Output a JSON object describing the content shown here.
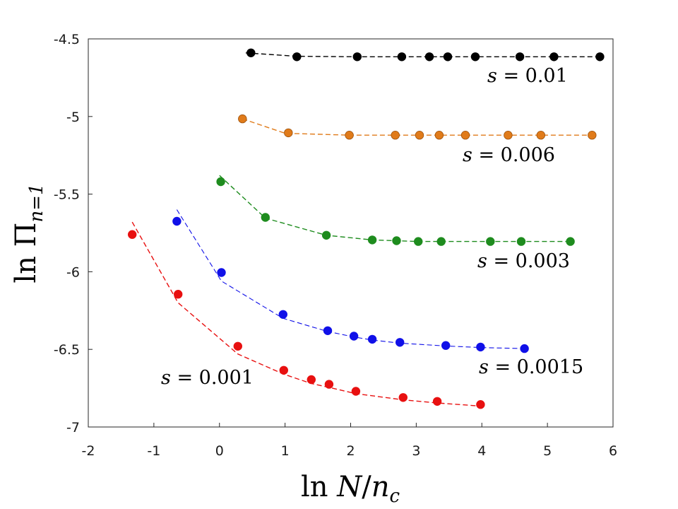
{
  "chart_data": {
    "type": "scatter",
    "title": "",
    "xlabel": "ln N/n_c",
    "ylabel": "ln Π_{n=1}",
    "xlabel_parts": {
      "prefix": "ln ",
      "var": "N",
      "slash": "/",
      "sub_var": "n",
      "sub": "c"
    },
    "ylabel_parts": {
      "prefix": "ln Π",
      "sub": "n=1"
    },
    "xlim": [
      -2,
      6
    ],
    "ylim": [
      -7,
      -4.5
    ],
    "xticks": [
      -2,
      -1,
      0,
      1,
      2,
      3,
      4,
      5,
      6
    ],
    "yticks": [
      -4.5,
      -5,
      -5.5,
      -6,
      -6.5,
      -7
    ],
    "xtick_labels": [
      "-2",
      "-1",
      "0",
      "1",
      "2",
      "3",
      "4",
      "5",
      "6"
    ],
    "ytick_labels": [
      "-4.5",
      "-5",
      "-5.5",
      "-6",
      "-6.5",
      "-7"
    ],
    "grid": false,
    "series": [
      {
        "name": "s = 0.01",
        "label_var": "s",
        "label_eq": " = 0.01",
        "color": "#000000",
        "x": [
          0.48,
          1.18,
          2.1,
          2.78,
          3.2,
          3.48,
          3.9,
          4.58,
          5.1,
          5.8
        ],
        "y": [
          -4.59,
          -4.615,
          -4.615,
          -4.615,
          -4.615,
          -4.615,
          -4.615,
          -4.615,
          -4.615,
          -4.615
        ],
        "fit_x": [
          0.4,
          1.18,
          2.1,
          2.78,
          3.2,
          3.48,
          3.9,
          4.58,
          5.1,
          5.8
        ],
        "fit_y": [
          -4.59,
          -4.612,
          -4.615,
          -4.615,
          -4.615,
          -4.615,
          -4.615,
          -4.615,
          -4.615,
          -4.615
        ]
      },
      {
        "name": "s = 0.006",
        "label_var": "s",
        "label_eq": " = 0.006",
        "color": "#e07b1a",
        "x": [
          0.35,
          1.05,
          1.98,
          2.68,
          3.05,
          3.35,
          3.75,
          4.4,
          4.9,
          5.68
        ],
        "y": [
          -5.015,
          -5.105,
          -5.12,
          -5.12,
          -5.12,
          -5.12,
          -5.12,
          -5.12,
          -5.12,
          -5.12
        ],
        "fit_x": [
          0.35,
          1.0,
          1.98,
          2.68,
          3.05,
          3.35,
          3.75,
          4.4,
          4.9,
          5.68
        ],
        "fit_y": [
          -5.015,
          -5.108,
          -5.12,
          -5.12,
          -5.12,
          -5.12,
          -5.12,
          -5.12,
          -5.12,
          -5.12
        ]
      },
      {
        "name": "s = 0.003",
        "label_var": "s",
        "label_eq": " = 0.003",
        "color": "#1e8c1e",
        "x": [
          0.02,
          0.7,
          1.63,
          2.33,
          2.7,
          3.03,
          3.38,
          4.13,
          4.6,
          5.35
        ],
        "y": [
          -5.42,
          -5.65,
          -5.765,
          -5.795,
          -5.8,
          -5.805,
          -5.805,
          -5.805,
          -5.805,
          -5.805
        ],
        "fit_x": [
          0.0,
          0.7,
          1.63,
          2.33,
          2.7,
          3.03,
          3.38,
          4.13,
          4.6,
          5.35
        ],
        "fit_y": [
          -5.38,
          -5.655,
          -5.765,
          -5.795,
          -5.8,
          -5.805,
          -5.805,
          -5.805,
          -5.805,
          -5.805
        ]
      },
      {
        "name": "s = 0.0015",
        "label_var": "s",
        "label_eq": " = 0.0015",
        "color": "#1010e8",
        "x": [
          -0.65,
          0.03,
          0.97,
          1.65,
          2.05,
          2.33,
          2.75,
          3.45,
          3.98,
          4.65
        ],
        "y": [
          -5.675,
          -6.005,
          -6.275,
          -6.38,
          -6.415,
          -6.435,
          -6.455,
          -6.475,
          -6.485,
          -6.495
        ],
        "fit_x": [
          -0.65,
          0.03,
          0.97,
          1.65,
          2.05,
          2.33,
          2.75,
          3.45,
          3.98,
          4.65
        ],
        "fit_y": [
          -5.6,
          -6.06,
          -6.3,
          -6.385,
          -6.42,
          -6.44,
          -6.46,
          -6.478,
          -6.488,
          -6.495
        ]
      },
      {
        "name": "s = 0.001",
        "label_var": "s",
        "label_eq": " = 0.001",
        "color": "#e81010",
        "x": [
          -1.33,
          -0.63,
          0.28,
          0.98,
          1.4,
          1.67,
          2.08,
          2.8,
          3.32,
          3.98
        ],
        "y": [
          -5.76,
          -6.145,
          -6.48,
          -6.635,
          -6.695,
          -6.725,
          -6.77,
          -6.81,
          -6.835,
          -6.855
        ],
        "fit_x": [
          -1.33,
          -0.63,
          0.28,
          0.98,
          1.4,
          1.67,
          2.08,
          2.8,
          3.32,
          3.98
        ],
        "fit_y": [
          -5.68,
          -6.2,
          -6.53,
          -6.66,
          -6.72,
          -6.745,
          -6.785,
          -6.825,
          -6.845,
          -6.865
        ]
      }
    ]
  }
}
